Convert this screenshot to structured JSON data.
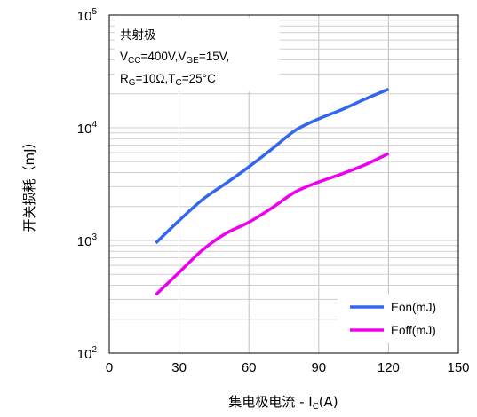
{
  "chart_data": {
    "type": "line",
    "xlabel": "集电极电流 - I",
    "xlabel_sub": "C",
    "xlabel_tail": "(A)",
    "ylabel": "开关损耗（mJ）",
    "xlim": [
      0,
      150
    ],
    "xticks": [
      "0",
      "30",
      "60",
      "90",
      "120",
      "150"
    ],
    "xtick_values": [
      0,
      30,
      60,
      90,
      120,
      150
    ],
    "ylim": [
      100,
      100000
    ],
    "yscale": "log",
    "yticks": [
      {
        "base": "10",
        "exp": "2",
        "value": 100
      },
      {
        "base": "10",
        "exp": "3",
        "value": 1000
      },
      {
        "base": "10",
        "exp": "4",
        "value": 10000
      },
      {
        "base": "10",
        "exp": "5",
        "value": 100000
      }
    ],
    "grid": true,
    "legend_position": "bottom-right",
    "annotation": {
      "line1": "共射极",
      "line2": {
        "a": "V",
        "a_sub": "CC",
        "b": "=400V,V",
        "b_sub": "GE",
        "c": "=15V,"
      },
      "line3": {
        "a": "R",
        "a_sub": "G",
        "b": "=10Ω,T",
        "b_sub": "C",
        "c": "=25°C"
      }
    },
    "series": [
      {
        "name": "Eon(mJ)",
        "color": "#3366ee",
        "x": [
          20,
          30,
          40,
          50,
          60,
          70,
          80,
          90,
          100,
          110,
          120
        ],
        "y": [
          950,
          1500,
          2300,
          3200,
          4500,
          6500,
          9500,
          12000,
          14500,
          18000,
          22000
        ]
      },
      {
        "name": "Eoff(mJ)",
        "color": "#ee00ee",
        "x": [
          20,
          30,
          40,
          50,
          60,
          70,
          80,
          90,
          100,
          110,
          120
        ],
        "y": [
          330,
          520,
          820,
          1150,
          1450,
          1950,
          2700,
          3300,
          3900,
          4700,
          5900
        ]
      }
    ]
  }
}
